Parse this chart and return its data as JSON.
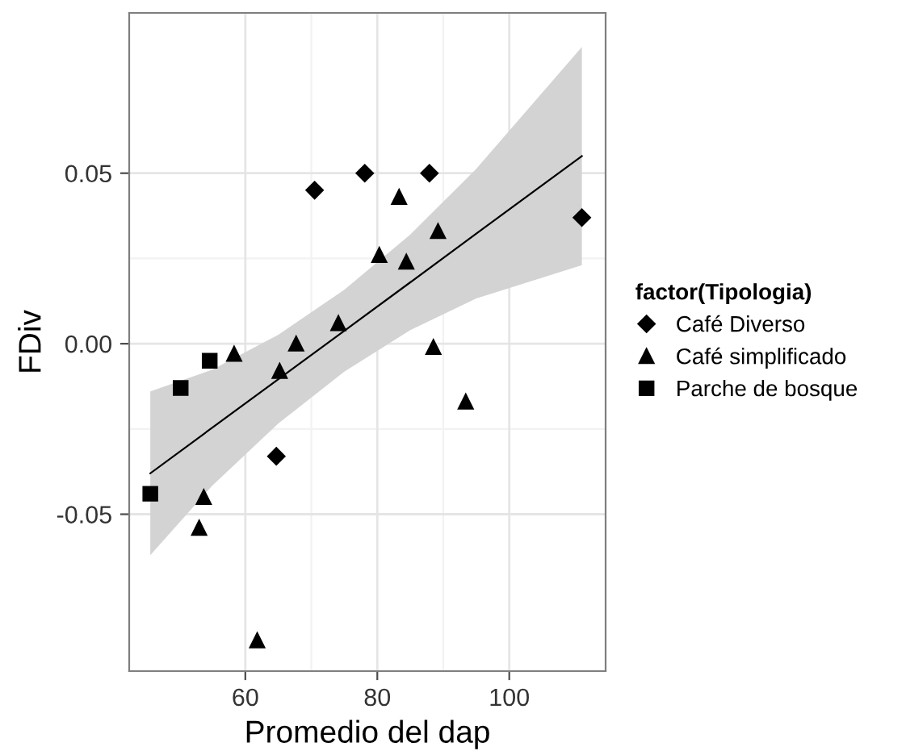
{
  "chart_data": {
    "type": "scatter",
    "xlabel": "Promedio del dap",
    "ylabel": "FDiv",
    "legend_title": "factor(Tipologia)",
    "legend": "right",
    "grid": true,
    "xlim": [
      42.4,
      114.6
    ],
    "ylim": [
      -0.096,
      0.097
    ],
    "xticks": [
      60,
      80,
      100
    ],
    "yticks": [
      {
        "value": -0.05,
        "label": "-0.05"
      },
      {
        "value": 0.0,
        "label": "0.00"
      },
      {
        "value": 0.05,
        "label": "0.05"
      }
    ],
    "series": [
      {
        "name": "Café Diverso",
        "marker": "diamond",
        "color": "#000000",
        "x": [
          70.5,
          78.1,
          87.9,
          111.0,
          64.7
        ],
        "values": [
          0.045,
          0.05,
          0.05,
          0.037,
          -0.033
        ]
      },
      {
        "name": "Café simplificado",
        "marker": "triangle",
        "color": "#000000",
        "x": [
          83.3,
          89.2,
          80.3,
          84.4,
          74.1,
          67.7,
          58.3,
          65.2,
          88.5,
          93.4,
          53.7,
          53.0,
          61.8
        ],
        "values": [
          0.043,
          0.033,
          0.026,
          0.024,
          0.006,
          0.0,
          -0.003,
          -0.008,
          -0.001,
          -0.017,
          -0.045,
          -0.054,
          -0.087
        ]
      },
      {
        "name": "Parche de bosque",
        "marker": "square",
        "color": "#000000",
        "x": [
          54.6,
          50.2,
          45.6
        ],
        "values": [
          -0.005,
          -0.013,
          -0.044
        ]
      },
      {
        "type": "line",
        "marker": "none",
        "color": "#000000",
        "x": [
          45.6,
          55,
          65,
          75,
          85,
          95,
          111
        ],
        "values": [
          -0.038,
          -0.0246,
          -0.0104,
          0.0038,
          0.018,
          0.0323,
          0.055
        ],
        "lower": [
          -0.062,
          -0.0416,
          -0.0234,
          -0.0082,
          0.004,
          0.0133,
          0.023
        ],
        "upper": [
          -0.014,
          -0.0076,
          0.0026,
          0.0158,
          0.032,
          0.0513,
          0.087
        ]
      }
    ]
  }
}
